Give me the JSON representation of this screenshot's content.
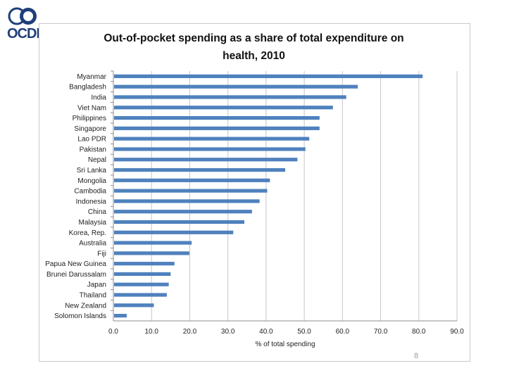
{
  "logo": {
    "text": "OCDE"
  },
  "page": {
    "number": "8"
  },
  "chart_data": {
    "type": "bar",
    "orientation": "horizontal",
    "title": "Out-of-pocket spending as a share of total expenditure on health, 2010",
    "title_lines": [
      "Out-of-pocket spending as a share of total expenditure on",
      "health, 2010"
    ],
    "xlabel": "% of total spending",
    "ylabel": "",
    "xlim": [
      0,
      90
    ],
    "xticks": [
      0,
      10,
      20,
      30,
      40,
      50,
      60,
      70,
      80,
      90
    ],
    "xtick_labels": [
      "0.0",
      "10.0",
      "20.0",
      "30.0",
      "40.0",
      "50.0",
      "60.0",
      "70.0",
      "80.0",
      "90.0"
    ],
    "grid": true,
    "bar_color": "#4f81bd",
    "categories": [
      "Myanmar",
      "Bangladesh",
      "India",
      "Viet Nam",
      "Philippines",
      "Singapore",
      "Lao PDR",
      "Pakistan",
      "Nepal",
      "Sri Lanka",
      "Mongolia",
      "Cambodia",
      "Indonesia",
      "China",
      "Malaysia",
      "Korea, Rep.",
      "Australia",
      "Fiji",
      "Papua New Guinea",
      "Brunei Darussalam",
      "Japan",
      "Thailand",
      "New Zealand",
      "Solomon Islands"
    ],
    "values": [
      81,
      64,
      61,
      57.5,
      54,
      54,
      51.3,
      50.3,
      48.2,
      45,
      41,
      40.3,
      38.3,
      36.3,
      34.3,
      31.4,
      20.5,
      19.9,
      16,
      15,
      14.5,
      14,
      10.6,
      3.5
    ]
  }
}
